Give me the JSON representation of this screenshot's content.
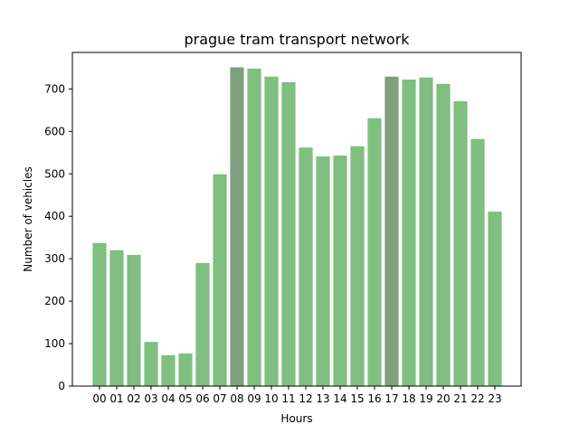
{
  "chart_data": {
    "type": "bar",
    "title": "prague tram transport network",
    "xlabel": "Hours",
    "ylabel": "Number of vehicles",
    "categories": [
      "00",
      "01",
      "02",
      "03",
      "04",
      "05",
      "06",
      "07",
      "08",
      "09",
      "10",
      "11",
      "12",
      "13",
      "14",
      "15",
      "16",
      "17",
      "18",
      "19",
      "20",
      "21",
      "22",
      "23"
    ],
    "values": [
      337,
      320,
      309,
      104,
      73,
      77,
      290,
      499,
      751,
      748,
      729,
      716,
      562,
      541,
      543,
      565,
      631,
      729,
      722,
      727,
      712,
      671,
      582,
      411
    ],
    "highlight_categories": [
      "08",
      "17"
    ],
    "ylim": [
      0,
      786
    ],
    "yticks": [
      0,
      100,
      200,
      300,
      400,
      500,
      600,
      700
    ],
    "grid": false,
    "legend": "none",
    "colors": {
      "bar": "#7fbf7f",
      "bar_highlight": "#7f9f7f",
      "axis": "#000000"
    }
  }
}
